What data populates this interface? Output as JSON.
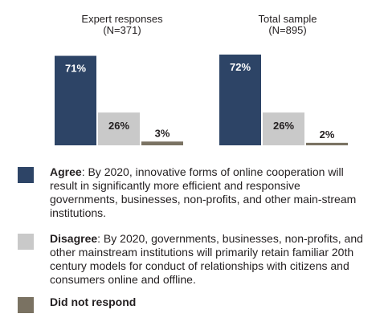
{
  "colors": {
    "agree": "#2d4466",
    "disagree": "#c9c9c9",
    "no_response": "#7a7262",
    "value_on_dark": "#ffffff",
    "value_on_light": "#231f20"
  },
  "chart_data": {
    "type": "bar",
    "categories": [
      "Agree",
      "Disagree",
      "Did not respond"
    ],
    "unit": "%",
    "panels": [
      {
        "title": "Expert responses",
        "subtitle": "(N=371)",
        "values": [
          71,
          26,
          3
        ],
        "labels": [
          "71%",
          "26%",
          "3%"
        ]
      },
      {
        "title": "Total sample",
        "subtitle": "(N=895)",
        "values": [
          72,
          26,
          2
        ],
        "labels": [
          "72%",
          "26%",
          "2%"
        ]
      }
    ],
    "ylim": [
      0,
      100
    ],
    "grid": false
  },
  "legend": {
    "agree": {
      "term": "Agree",
      "text": ": By 2020, innovative forms of online cooperation will result in significantly more efficient and responsive governments, businesses, non-profits, and other main-stream institutions."
    },
    "disagree": {
      "term": "Disagree",
      "text": ": By 2020, governments, businesses, non-profits, and other mainstream institutions will primarily retain familiar 20th century models for conduct of relationships with citizens and consumers online and offline."
    },
    "no_response": {
      "term": "Did not respond",
      "text": ""
    }
  }
}
